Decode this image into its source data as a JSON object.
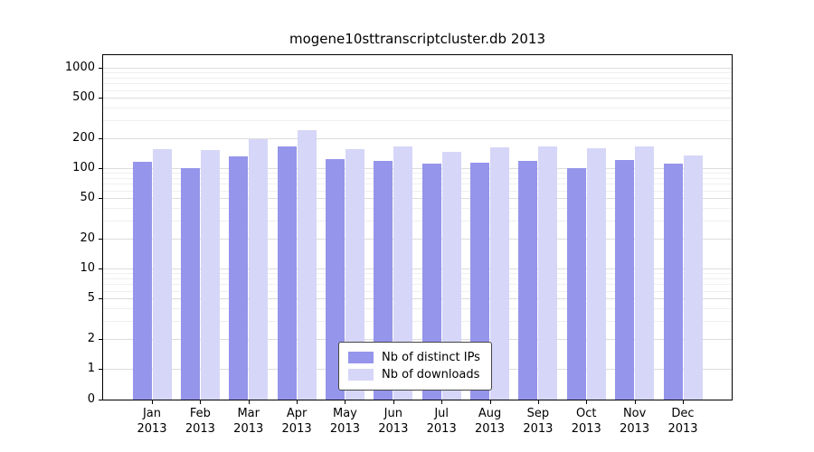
{
  "chart_data": {
    "type": "bar",
    "title": "mogene10sttranscriptcluster.db 2013",
    "categories": [
      "Jan",
      "Feb",
      "Mar",
      "Apr",
      "May",
      "Jun",
      "Jul",
      "Aug",
      "Sep",
      "Oct",
      "Nov",
      "Dec"
    ],
    "x_sub_label": "2013",
    "yticks": [
      0,
      1,
      2,
      5,
      10,
      20,
      50,
      100,
      200,
      500,
      1000
    ],
    "yscale": "log",
    "ylim": [
      0,
      1000
    ],
    "grid": true,
    "legend_position": "bottom-center",
    "series": [
      {
        "name": "Nb of distinct IPs",
        "color": "#9595eb",
        "values": [
          115,
          100,
          130,
          165,
          122,
          117,
          112,
          114,
          119,
          100,
          121,
          112
        ]
      },
      {
        "name": "Nb of downloads",
        "color": "#d6d6f8",
        "values": [
          155,
          150,
          195,
          240,
          155,
          165,
          145,
          160,
          165,
          158,
          165,
          135
        ]
      }
    ]
  }
}
